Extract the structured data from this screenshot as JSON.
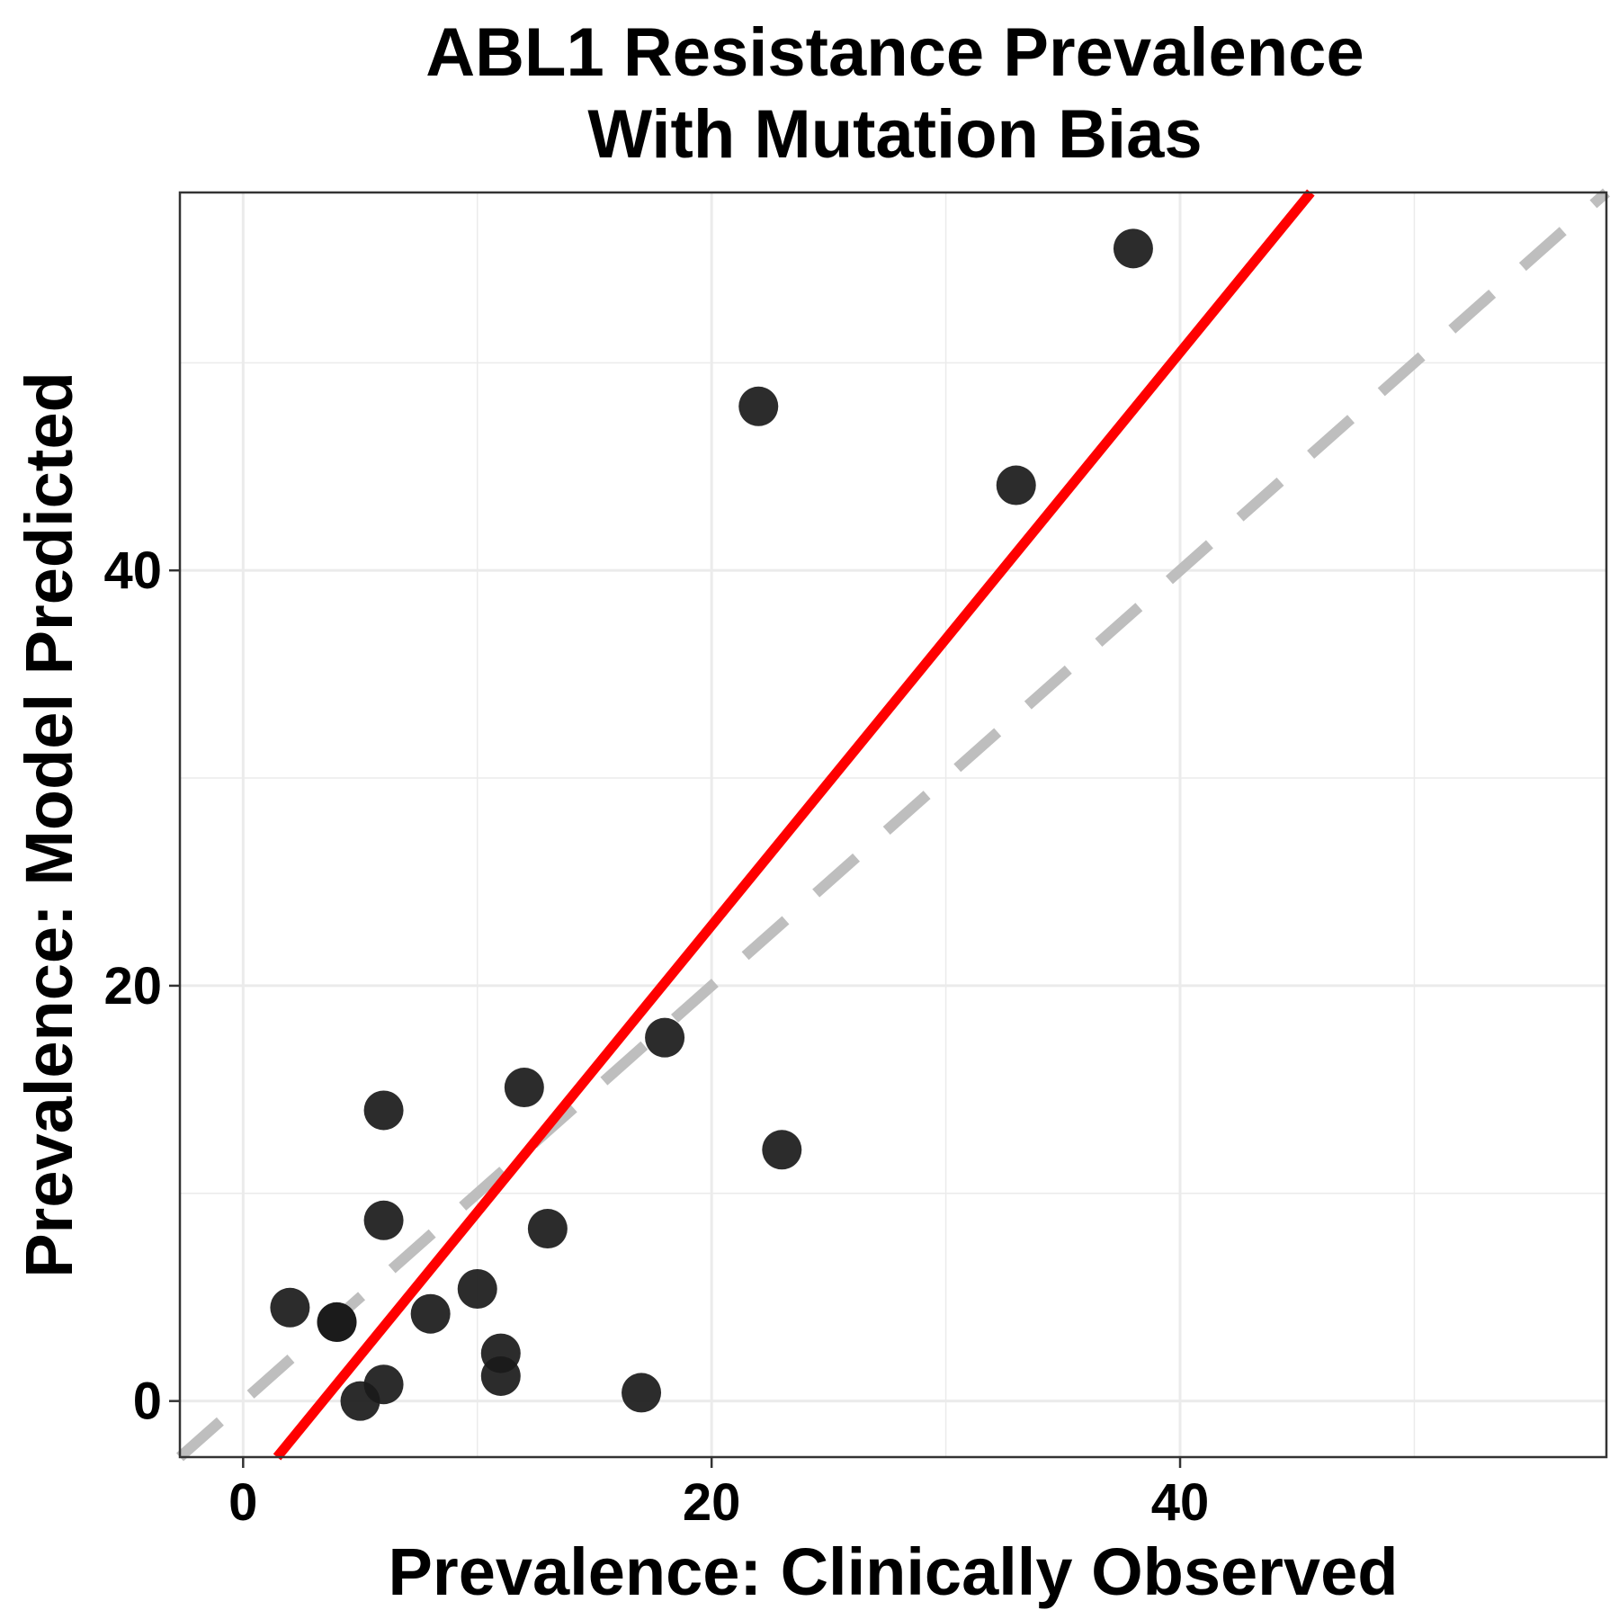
{
  "chart_data": {
    "type": "scatter",
    "title": [
      "ABL1 Resistance Prevalence",
      "With Mutation Bias"
    ],
    "xlabel": "Prevalence: Clinically Observed",
    "ylabel": "Prevalence: Model Predicted",
    "xlim": [
      -2.7,
      58.2
    ],
    "ylim": [
      -2.7,
      58.2
    ],
    "x_ticks": [
      0,
      20,
      40
    ],
    "y_ticks": [
      0,
      20,
      40
    ],
    "x_tick_labels": [
      "0",
      "20",
      "40"
    ],
    "y_tick_labels": [
      "0",
      "20",
      "40"
    ],
    "x_minor_gridlines": [
      10,
      30,
      50
    ],
    "y_minor_gridlines": [
      10,
      30,
      50
    ],
    "grid": true,
    "points": [
      {
        "x": 2,
        "y": 4.5
      },
      {
        "x": 4,
        "y": 3.8
      },
      {
        "x": 4,
        "y": 3.8
      },
      {
        "x": 5,
        "y": 0
      },
      {
        "x": 6,
        "y": 0.8
      },
      {
        "x": 6,
        "y": 14
      },
      {
        "x": 6,
        "y": 8.7
      },
      {
        "x": 8,
        "y": 4.2
      },
      {
        "x": 10,
        "y": 5.4
      },
      {
        "x": 11,
        "y": 2.3
      },
      {
        "x": 11,
        "y": 1.2
      },
      {
        "x": 12,
        "y": 15.1
      },
      {
        "x": 13,
        "y": 8.3
      },
      {
        "x": 17,
        "y": 0.4
      },
      {
        "x": 18,
        "y": 17.5
      },
      {
        "x": 22,
        "y": 47.9
      },
      {
        "x": 23,
        "y": 12.1
      },
      {
        "x": 33,
        "y": 44.1
      },
      {
        "x": 38,
        "y": 55.5
      }
    ],
    "point_color": "#1a1a1a",
    "fit_line": {
      "slope": 1.38,
      "intercept": -4.7,
      "color": "#ff0000"
    },
    "identity_line": {
      "slope": 1,
      "intercept": 0,
      "color": "#bebebe",
      "style": "dashed"
    }
  }
}
